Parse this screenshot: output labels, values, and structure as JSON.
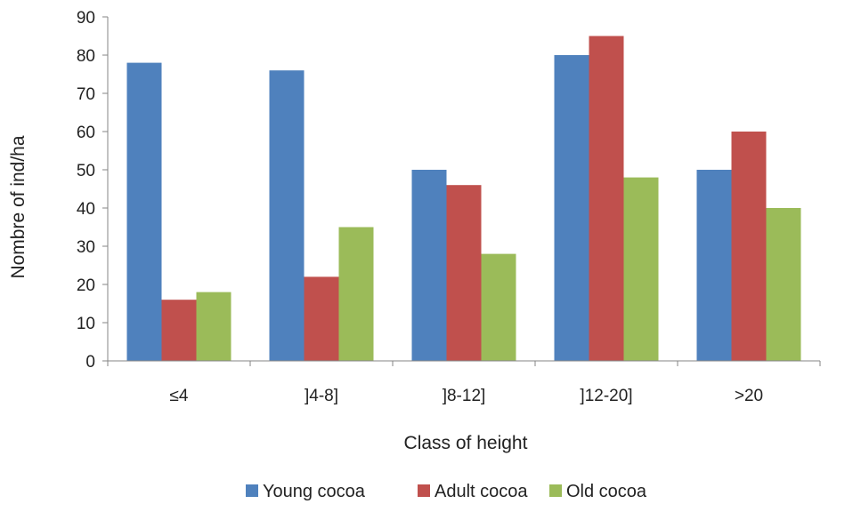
{
  "chart_data": {
    "type": "bar",
    "title": "",
    "xlabel": "Class of height",
    "ylabel": "Nombre of ind/ha",
    "ylim": [
      0,
      90
    ],
    "yticks": [
      0,
      10,
      20,
      30,
      40,
      50,
      60,
      70,
      80,
      90
    ],
    "grid": false,
    "legend_position": "bottom",
    "categories": [
      "≤4",
      "]4-8]",
      "]8-12]",
      "]12-20]",
      ">20"
    ],
    "series": [
      {
        "name": "Young cocoa",
        "color": "#4F81BD",
        "values": [
          78,
          76,
          50,
          80,
          50
        ]
      },
      {
        "name": "Adult cocoa",
        "color": "#C0504D",
        "values": [
          16,
          22,
          46,
          85,
          60
        ]
      },
      {
        "name": "Old cocoa",
        "color": "#9BBB59",
        "values": [
          18,
          35,
          28,
          48,
          40
        ]
      }
    ]
  }
}
